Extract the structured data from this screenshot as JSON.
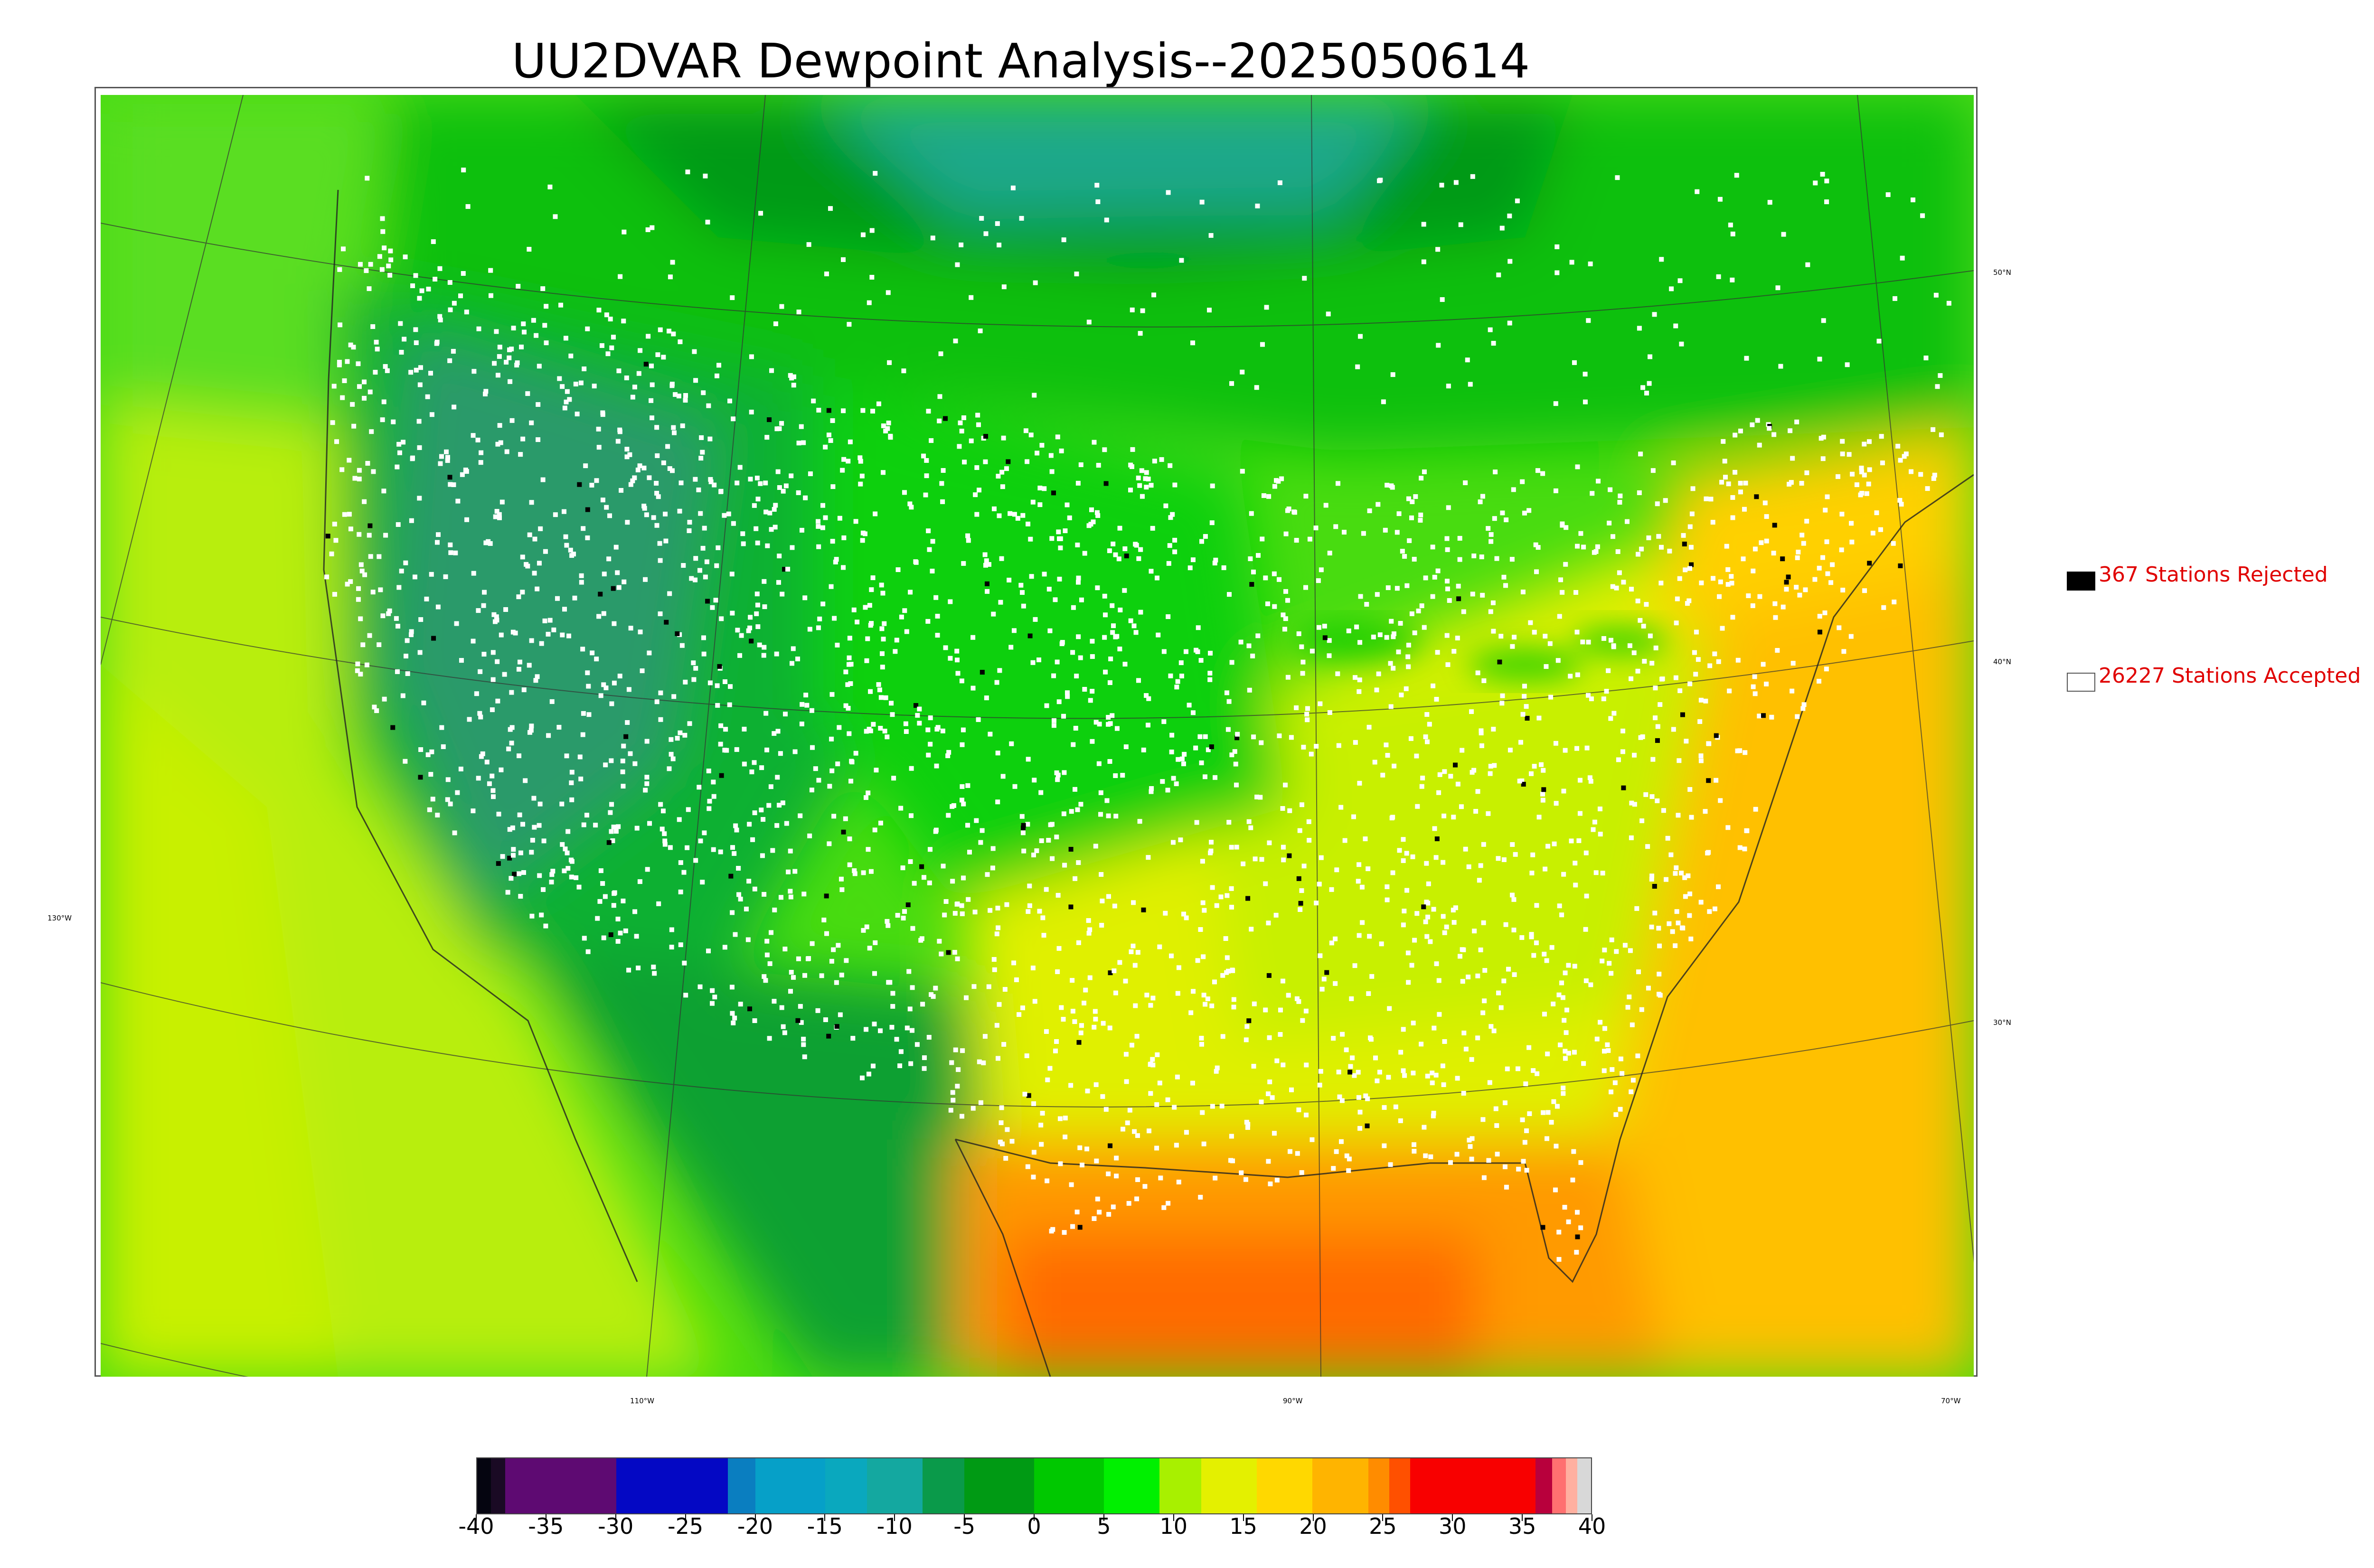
{
  "title": "UU2DVAR Dewpoint Analysis--2025050614",
  "map": {
    "graticule_labels": {
      "latitudes": [
        "50°N",
        "40°N",
        "30°N"
      ],
      "longitudes": [
        "130°W",
        "110°W",
        "90°W",
        "70°W"
      ]
    }
  },
  "legend": {
    "rejected": {
      "label": "367 Stations Rejected",
      "count": 367,
      "swatch_color": "#000000"
    },
    "accepted": {
      "label": "26227 Stations Accepted",
      "count": 26227,
      "swatch_color": "#ffffff"
    },
    "text_color": "#e00000"
  },
  "colorbar": {
    "range": [
      -40,
      40
    ],
    "tick_labels": [
      "-40",
      "-35",
      "-30",
      "-25",
      "-20",
      "-15",
      "-10",
      "-5",
      "0",
      "5",
      "10",
      "15",
      "20",
      "25",
      "30",
      "35",
      "40"
    ],
    "segments": [
      {
        "from": -40,
        "to": -39,
        "color": "#050510"
      },
      {
        "from": -39,
        "to": -38,
        "color": "#1a0a24"
      },
      {
        "from": -38,
        "to": -30,
        "color": "#5e0a72"
      },
      {
        "from": -30,
        "to": -22,
        "color": "#0408c4"
      },
      {
        "from": -22,
        "to": -20,
        "color": "#0a7ec0"
      },
      {
        "from": -20,
        "to": -15,
        "color": "#06a0c8"
      },
      {
        "from": -15,
        "to": -12,
        "color": "#0aa8be"
      },
      {
        "from": -12,
        "to": -8,
        "color": "#14a8a0"
      },
      {
        "from": -8,
        "to": -5,
        "color": "#0a9a4a"
      },
      {
        "from": -5,
        "to": 0,
        "color": "#009a14"
      },
      {
        "from": 0,
        "to": 5,
        "color": "#00c800"
      },
      {
        "from": 5,
        "to": 9,
        "color": "#00f000"
      },
      {
        "from": 9,
        "to": 12,
        "color": "#a8f000"
      },
      {
        "from": 12,
        "to": 16,
        "color": "#e4f000"
      },
      {
        "from": 16,
        "to": 20,
        "color": "#ffd800"
      },
      {
        "from": 20,
        "to": 24,
        "color": "#ffb400"
      },
      {
        "from": 24,
        "to": 25.5,
        "color": "#ff8c00"
      },
      {
        "from": 25.5,
        "to": 27,
        "color": "#ff5000"
      },
      {
        "from": 27,
        "to": 36,
        "color": "#f80000"
      },
      {
        "from": 36,
        "to": 37.2,
        "color": "#b8003c"
      },
      {
        "from": 37.2,
        "to": 38.2,
        "color": "#ff7070"
      },
      {
        "from": 38.2,
        "to": 39,
        "color": "#ffb0a0"
      },
      {
        "from": 39,
        "to": 40,
        "color": "#d8d8d8"
      }
    ]
  },
  "field_colors": {
    "ocean_pacific": "#b8ee10",
    "ocean_atlantic": "#ffc800",
    "gulf": "#ff7a00",
    "canada": "#00c800",
    "west_dry": "#2a9a6a",
    "plains": "#00d400",
    "southeast": "#e0f000",
    "station_accepted": "#ffffff",
    "station_rejected": "#000000"
  }
}
